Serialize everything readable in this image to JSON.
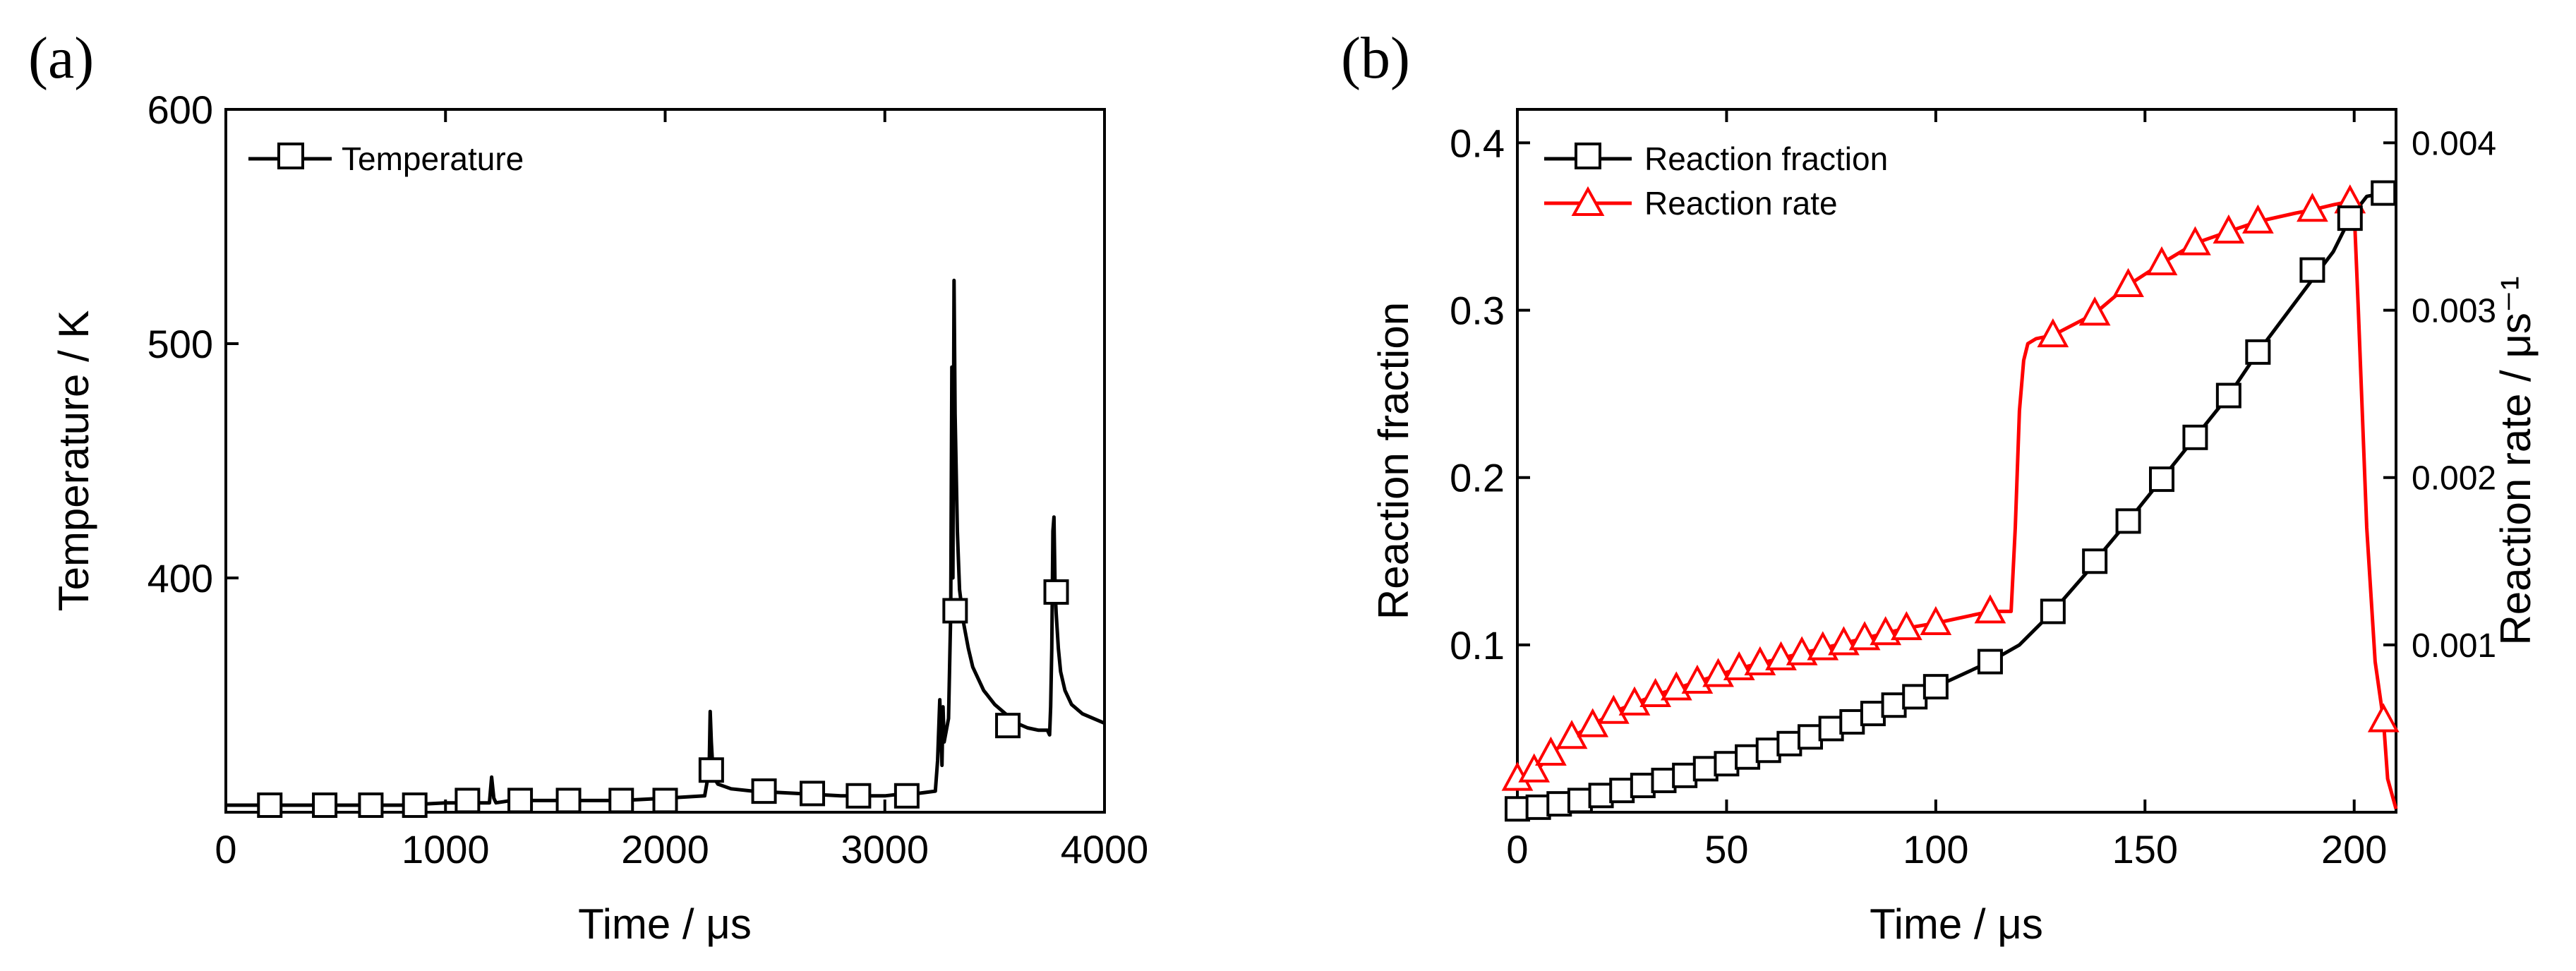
{
  "chart_data": [
    {
      "panel": "(a)",
      "type": "line",
      "xlabel": "Time / μs",
      "ylabel": "Temperature / K",
      "xlim": [
        0,
        4000
      ],
      "ylim": [
        300,
        600
      ],
      "xticks": [
        0,
        1000,
        2000,
        3000,
        4000
      ],
      "xtick_labels": [
        "0",
        "1000",
        "2000",
        "3000",
        "4000"
      ],
      "yticks": [
        400,
        500,
        600
      ],
      "ytick_labels": [
        "400",
        "500",
        "600"
      ],
      "legend": [
        "Temperature"
      ],
      "legend_position": "top-left",
      "series": [
        {
          "name": "Temperature",
          "color": "#000000",
          "marker": "square",
          "x": [
            0,
            200,
            400,
            600,
            800,
            1000,
            1100,
            1200,
            1210,
            1220,
            1230,
            1300,
            1500,
            1800,
            2000,
            2180,
            2200,
            2205,
            2210,
            2215,
            2220,
            2240,
            2300,
            2400,
            2600,
            2800,
            3000,
            3100,
            3150,
            3230,
            3240,
            3250,
            3260,
            3265,
            3270,
            3290,
            3300,
            3305,
            3310,
            3315,
            3320,
            3330,
            3340,
            3360,
            3380,
            3400,
            3450,
            3500,
            3550,
            3600,
            3650,
            3700,
            3740,
            3750,
            3755,
            3760,
            3765,
            3770,
            3775,
            3780,
            3790,
            3800,
            3820,
            3850,
            3900,
            3950,
            4000
          ],
          "y": [
            303,
            303,
            303,
            303,
            303,
            304,
            304,
            304,
            315,
            306,
            304,
            305,
            305,
            305,
            306,
            307,
            318,
            343,
            330,
            322,
            315,
            312,
            310,
            309,
            308,
            307,
            307,
            308,
            308,
            309,
            322,
            348,
            320,
            345,
            330,
            340,
            385,
            490,
            400,
            527,
            470,
            420,
            395,
            380,
            370,
            362,
            352,
            346,
            342,
            338,
            336,
            335,
            335,
            333,
            345,
            370,
            420,
            426,
            395,
            385,
            370,
            360,
            352,
            346,
            342,
            340,
            338
          ]
        }
      ],
      "markers_x": [
        200,
        450,
        660,
        860,
        1100,
        1340,
        1560,
        1800,
        2000,
        2210,
        2450,
        2670,
        2880,
        3100,
        3320,
        3560,
        3780
      ],
      "markers_y": [
        303,
        303,
        303,
        303,
        305,
        305,
        305,
        305,
        305,
        318,
        309,
        308,
        307,
        307,
        386,
        337,
        394
      ]
    },
    {
      "panel": "(b)",
      "type": "line",
      "xlabel": "Time / μs",
      "ylabel": "Reaction fraction",
      "y2label": "Reaction rate / μs⁻¹",
      "xlim": [
        0,
        210
      ],
      "ylim": [
        0,
        0.42
      ],
      "y2lim": [
        0,
        0.0042
      ],
      "xticks": [
        0,
        50,
        100,
        150,
        200
      ],
      "xtick_labels": [
        "0",
        "50",
        "100",
        "150",
        "200"
      ],
      "yticks": [
        0.1,
        0.2,
        0.3,
        0.4
      ],
      "ytick_labels": [
        "0.1",
        "0.2",
        "0.3",
        "0.4"
      ],
      "y2ticks": [
        0.001,
        0.002,
        0.003,
        0.004
      ],
      "y2tick_labels": [
        "0.001",
        "0.002",
        "0.003",
        "0.004"
      ],
      "legend": [
        "Reaction fraction",
        "Reaction rate"
      ],
      "legend_position": "top-left",
      "series": [
        {
          "name": "Reaction fraction",
          "axis": "left",
          "color": "#000000",
          "marker": "square",
          "x": [
            0,
            5,
            10,
            15,
            20,
            25,
            30,
            35,
            40,
            45,
            50,
            55,
            60,
            65,
            70,
            75,
            80,
            85,
            90,
            95,
            100,
            113,
            120,
            128,
            136,
            138,
            146,
            154,
            162,
            170,
            177,
            186,
            195,
            199,
            203,
            207
          ],
          "y": [
            0.002,
            0.003,
            0.005,
            0.007,
            0.01,
            0.013,
            0.016,
            0.019,
            0.022,
            0.026,
            0.029,
            0.033,
            0.037,
            0.041,
            0.045,
            0.05,
            0.054,
            0.059,
            0.064,
            0.069,
            0.075,
            0.09,
            0.1,
            0.12,
            0.143,
            0.15,
            0.174,
            0.199,
            0.224,
            0.249,
            0.275,
            0.305,
            0.335,
            0.355,
            0.368,
            0.37
          ],
          "markers_x": [
            0,
            5,
            10,
            15,
            20,
            25,
            30,
            35,
            40,
            45,
            50,
            55,
            60,
            65,
            70,
            75,
            80,
            85,
            90,
            95,
            100,
            113,
            128,
            138,
            146,
            154,
            162,
            170,
            177,
            190,
            199,
            207
          ],
          "markers_y": [
            0.002,
            0.003,
            0.005,
            0.007,
            0.01,
            0.013,
            0.016,
            0.019,
            0.022,
            0.026,
            0.029,
            0.033,
            0.037,
            0.041,
            0.045,
            0.05,
            0.054,
            0.059,
            0.064,
            0.069,
            0.075,
            0.09,
            0.12,
            0.15,
            0.174,
            0.199,
            0.224,
            0.249,
            0.275,
            0.324,
            0.355,
            0.37
          ]
        },
        {
          "name": "Reaction rate",
          "axis": "right",
          "color": "#ff0000",
          "marker": "triangle",
          "x": [
            0,
            3,
            8,
            13,
            18,
            23,
            28,
            33,
            38,
            43,
            48,
            53,
            58,
            63,
            68,
            73,
            78,
            83,
            88,
            93,
            100,
            113,
            118,
            119,
            120,
            121,
            122,
            124,
            128,
            138,
            146,
            154,
            162,
            170,
            177,
            186,
            190,
            195,
            199,
            200,
            201,
            203,
            205,
            207,
            208,
            210
          ],
          "y": [
            0.00015,
            0.0002,
            0.00035,
            0.00045,
            0.00052,
            0.0006,
            0.00065,
            0.0007,
            0.00074,
            0.00078,
            0.00082,
            0.00086,
            0.00089,
            0.00092,
            0.00095,
            0.00098,
            0.00101,
            0.00104,
            0.00107,
            0.0011,
            0.00113,
            0.0012,
            0.0012,
            0.0017,
            0.0024,
            0.0027,
            0.0028,
            0.00283,
            0.00285,
            0.00298,
            0.00315,
            0.00328,
            0.0034,
            0.00347,
            0.00353,
            0.00358,
            0.0036,
            0.00363,
            0.00365,
            0.0036,
            0.003,
            0.0017,
            0.0009,
            0.00055,
            0.0002,
            2e-05
          ],
          "markers_x": [
            0,
            4,
            8,
            13,
            18,
            23,
            28,
            33,
            38,
            43,
            48,
            53,
            58,
            63,
            68,
            73,
            78,
            83,
            88,
            93,
            100,
            113,
            128,
            138,
            146,
            154,
            162,
            170,
            177,
            190,
            199,
            207
          ],
          "markers_y": [
            0.0002,
            0.00025,
            0.00035,
            0.00045,
            0.00052,
            0.0006,
            0.00065,
            0.0007,
            0.00074,
            0.00078,
            0.00082,
            0.00086,
            0.00089,
            0.00092,
            0.00095,
            0.00098,
            0.00101,
            0.00104,
            0.00107,
            0.0011,
            0.00113,
            0.0012,
            0.00285,
            0.00298,
            0.00315,
            0.00328,
            0.0034,
            0.00347,
            0.00353,
            0.0036,
            0.00365,
            0.00055
          ]
        }
      ]
    }
  ],
  "colors": {
    "black": "#000000",
    "red": "#ff0000"
  }
}
